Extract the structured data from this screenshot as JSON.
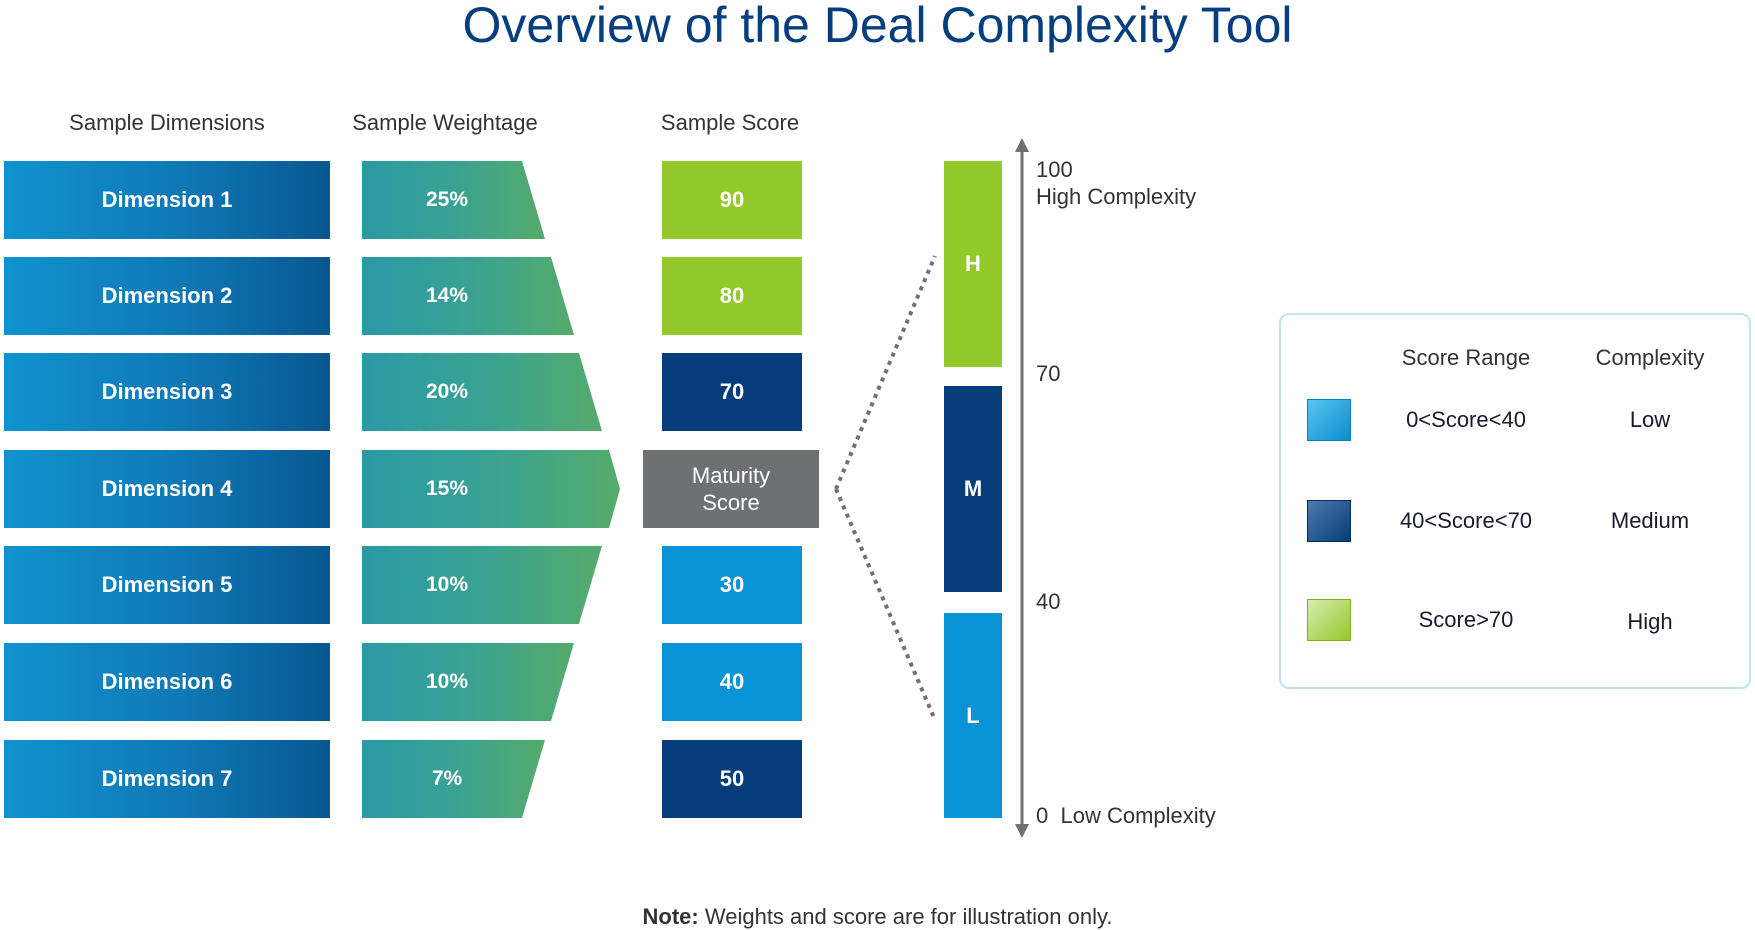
{
  "title": "Overview of the Deal Complexity Tool",
  "column_headers": {
    "dimensions": "Sample Dimensions",
    "weightage": "Sample Weightage",
    "score": "Sample Score"
  },
  "rows": [
    {
      "dimension": "Dimension 1",
      "weight": "25%",
      "score": "90"
    },
    {
      "dimension": "Dimension 2",
      "weight": "14%",
      "score": "80"
    },
    {
      "dimension": "Dimension 3",
      "weight": "20%",
      "score": "70"
    },
    {
      "dimension": "Dimension 4",
      "weight": "15%",
      "score": "Maturity Score"
    },
    {
      "dimension": "Dimension 5",
      "weight": "10%",
      "score": "30"
    },
    {
      "dimension": "Dimension 6",
      "weight": "10%",
      "score": "40"
    },
    {
      "dimension": "Dimension 7",
      "weight": "7%",
      "score": "50"
    }
  ],
  "maturity": {
    "line1": "Maturity",
    "line2": "Score"
  },
  "bands": {
    "high": "H",
    "medium": "M",
    "low": "L"
  },
  "scale": {
    "top_value": "100",
    "top_label": "High Complexity",
    "mark_70": "70",
    "mark_40": "40",
    "bottom_value": "0",
    "bottom_label": "Low Complexity"
  },
  "legend": {
    "header_range": "Score Range",
    "header_complexity": "Complexity",
    "items": [
      {
        "range": "0<Score<40",
        "complexity": "Low"
      },
      {
        "range": "40<Score<70",
        "complexity": "Medium"
      },
      {
        "range": "Score>70",
        "complexity": "High"
      }
    ]
  },
  "note": {
    "label": "Note:",
    "text": "Weights and score are for illustration only."
  },
  "colors": {
    "dark_blue": "#053d7a",
    "light_blue": "#0a93d6",
    "green": "#93c92b",
    "maturity_gray": "#6f7072",
    "title_blue": "#063f7f"
  }
}
